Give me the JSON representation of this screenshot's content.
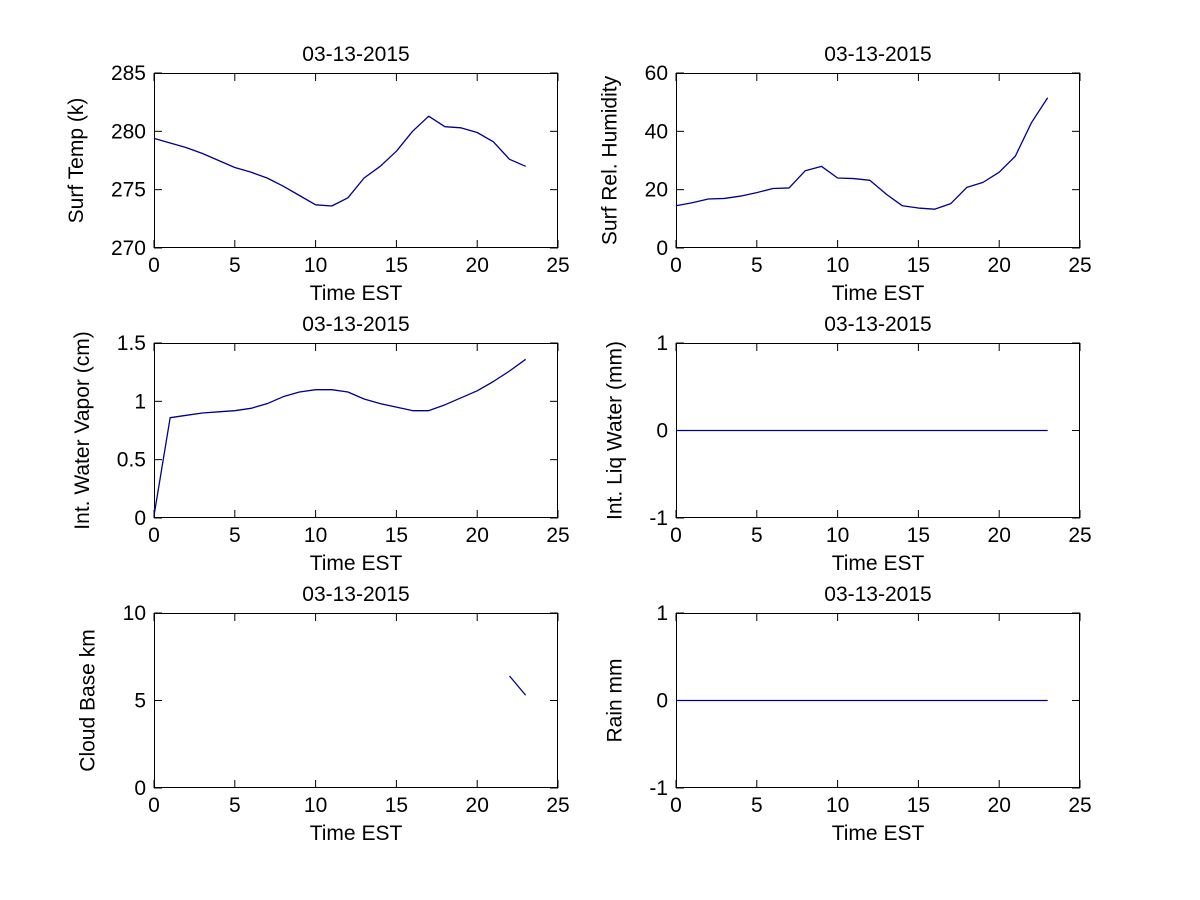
{
  "figure": {
    "background": "#ffffff",
    "line_color": "#00008b",
    "axis_color": "#000000",
    "text_color": "#000000"
  },
  "chart_data": [
    {
      "id": "surf-temp",
      "type": "line",
      "title": "03-13-2015",
      "xlabel": "Time EST",
      "ylabel": "Surf Temp (k)",
      "xlim": [
        0,
        25
      ],
      "ylim": [
        270,
        285
      ],
      "xtick_values": [
        0,
        5,
        10,
        15,
        20,
        25
      ],
      "xtick_labels": [
        "0",
        "5",
        "10",
        "15",
        "20",
        "25"
      ],
      "ytick_values": [
        270,
        275,
        280,
        285
      ],
      "ytick_labels": [
        "270",
        "275",
        "280",
        "285"
      ],
      "grid": false,
      "x": [
        0,
        1,
        2,
        3,
        4,
        5,
        6,
        7,
        8,
        9,
        10,
        11,
        12,
        13,
        14,
        15,
        16,
        17,
        18,
        19,
        20,
        21,
        22,
        23
      ],
      "y": [
        279.4,
        279.0,
        278.6,
        278.1,
        277.5,
        276.9,
        276.5,
        276.0,
        275.3,
        274.5,
        273.7,
        273.6,
        274.3,
        276.0,
        277.0,
        278.3,
        280.0,
        281.3,
        280.4,
        280.3,
        279.9,
        279.1,
        277.6,
        277.0
      ]
    },
    {
      "id": "surf-rel-humidity",
      "type": "line",
      "title": "03-13-2015",
      "xlabel": "Time EST",
      "ylabel": "Surf Rel. Humidity",
      "xlim": [
        0,
        25
      ],
      "ylim": [
        0,
        60
      ],
      "xtick_values": [
        0,
        5,
        10,
        15,
        20,
        25
      ],
      "xtick_labels": [
        "0",
        "5",
        "10",
        "15",
        "20",
        "25"
      ],
      "ytick_values": [
        0,
        20,
        40,
        60
      ],
      "ytick_labels": [
        "0",
        "20",
        "40",
        "60"
      ],
      "grid": false,
      "x": [
        0,
        1,
        2,
        3,
        4,
        5,
        6,
        7,
        8,
        9,
        10,
        11,
        12,
        13,
        14,
        15,
        16,
        17,
        18,
        19,
        20,
        21,
        22,
        23
      ],
      "y": [
        14.5,
        15.5,
        16.8,
        17.0,
        17.8,
        19.0,
        20.4,
        20.6,
        26.5,
        28.0,
        24.0,
        23.8,
        23.2,
        18.5,
        14.5,
        13.7,
        13.3,
        15.2,
        20.8,
        22.5,
        26.0,
        31.5,
        43.0,
        51.5
      ]
    },
    {
      "id": "int-water-vapor",
      "type": "line",
      "title": "03-13-2015",
      "xlabel": "Time EST",
      "ylabel": "Int. Water Vapor (cm)",
      "xlim": [
        0,
        25
      ],
      "ylim": [
        0,
        1.5
      ],
      "xtick_values": [
        0,
        5,
        10,
        15,
        20,
        25
      ],
      "xtick_labels": [
        "0",
        "5",
        "10",
        "15",
        "20",
        "25"
      ],
      "ytick_values": [
        0,
        0.5,
        1,
        1.5
      ],
      "ytick_labels": [
        "0",
        "0.5",
        "1",
        "1.5"
      ],
      "grid": false,
      "x": [
        0,
        1,
        2,
        3,
        4,
        5,
        6,
        7,
        8,
        9,
        10,
        11,
        12,
        13,
        14,
        15,
        16,
        17,
        18,
        19,
        20,
        21,
        22,
        23
      ],
      "y": [
        0.02,
        0.86,
        0.88,
        0.9,
        0.91,
        0.92,
        0.94,
        0.98,
        1.04,
        1.08,
        1.1,
        1.1,
        1.08,
        1.02,
        0.98,
        0.95,
        0.92,
        0.92,
        0.97,
        1.03,
        1.09,
        1.17,
        1.26,
        1.36
      ]
    },
    {
      "id": "int-liq-water",
      "type": "line",
      "title": "03-13-2015",
      "xlabel": "Time EST",
      "ylabel": "Int. Liq Water (mm)",
      "xlim": [
        0,
        25
      ],
      "ylim": [
        -1,
        1
      ],
      "xtick_values": [
        0,
        5,
        10,
        15,
        20,
        25
      ],
      "xtick_labels": [
        "0",
        "5",
        "10",
        "15",
        "20",
        "25"
      ],
      "ytick_values": [
        -1,
        0,
        1
      ],
      "ytick_labels": [
        "-1",
        "0",
        "1"
      ],
      "grid": false,
      "x": [
        0,
        1,
        2,
        3,
        4,
        5,
        6,
        7,
        8,
        9,
        10,
        11,
        12,
        13,
        14,
        15,
        16,
        17,
        18,
        19,
        20,
        21,
        22,
        23
      ],
      "y": [
        0,
        0,
        0,
        0,
        0,
        0,
        0,
        0,
        0,
        0,
        0,
        0,
        0,
        0,
        0,
        0,
        0,
        0,
        0,
        0,
        0,
        0,
        0,
        0
      ]
    },
    {
      "id": "cloud-base",
      "type": "line",
      "title": "03-13-2015",
      "xlabel": "Time EST",
      "ylabel": "Cloud Base km",
      "xlim": [
        0,
        25
      ],
      "ylim": [
        0,
        10
      ],
      "xtick_values": [
        0,
        5,
        10,
        15,
        20,
        25
      ],
      "xtick_labels": [
        "0",
        "5",
        "10",
        "15",
        "20",
        "25"
      ],
      "ytick_values": [
        0,
        5,
        10
      ],
      "ytick_labels": [
        "0",
        "5",
        "10"
      ],
      "grid": false,
      "x": [
        22,
        23
      ],
      "y": [
        6.4,
        5.3
      ]
    },
    {
      "id": "rain",
      "type": "line",
      "title": "03-13-2015",
      "xlabel": "Time EST",
      "ylabel": "Rain mm",
      "xlim": [
        0,
        25
      ],
      "ylim": [
        -1,
        1
      ],
      "xtick_values": [
        0,
        5,
        10,
        15,
        20,
        25
      ],
      "xtick_labels": [
        "0",
        "5",
        "10",
        "15",
        "20",
        "25"
      ],
      "ytick_values": [
        -1,
        0,
        1
      ],
      "ytick_labels": [
        "-1",
        "0",
        "1"
      ],
      "grid": false,
      "x": [
        0,
        1,
        2,
        3,
        4,
        5,
        6,
        7,
        8,
        9,
        10,
        11,
        12,
        13,
        14,
        15,
        16,
        17,
        18,
        19,
        20,
        21,
        22,
        23
      ],
      "y": [
        0,
        0,
        0,
        0,
        0,
        0,
        0,
        0,
        0,
        0,
        0,
        0,
        0,
        0,
        0,
        0,
        0,
        0,
        0,
        0,
        0,
        0,
        0,
        0
      ]
    }
  ]
}
